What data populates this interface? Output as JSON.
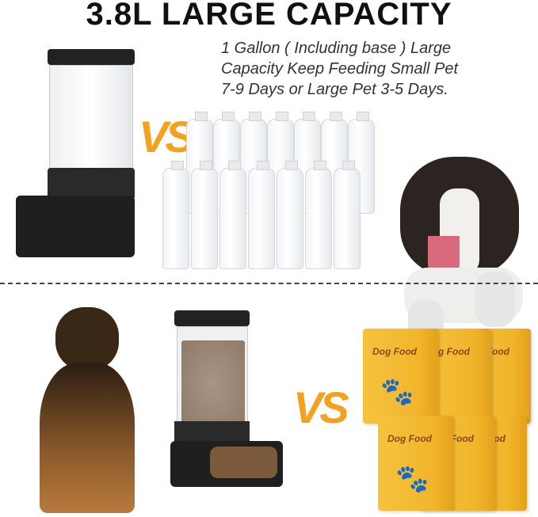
{
  "header": {
    "title": "3.8L LARGE CAPACITY"
  },
  "description": {
    "lines": [
      "1 Gallon ( Including base ) Large",
      "Capacity Keep Feeding Small Pet",
      "7-9 Days or Large Pet 3-5 Days."
    ]
  },
  "comparison": {
    "vs_label": "VS",
    "bag_label": "Dog Food"
  },
  "colors": {
    "accent": "#f4a21e",
    "bag": "#f3bb34",
    "feeder": "#1e1e1e"
  },
  "icons": [
    "paw-icon"
  ]
}
